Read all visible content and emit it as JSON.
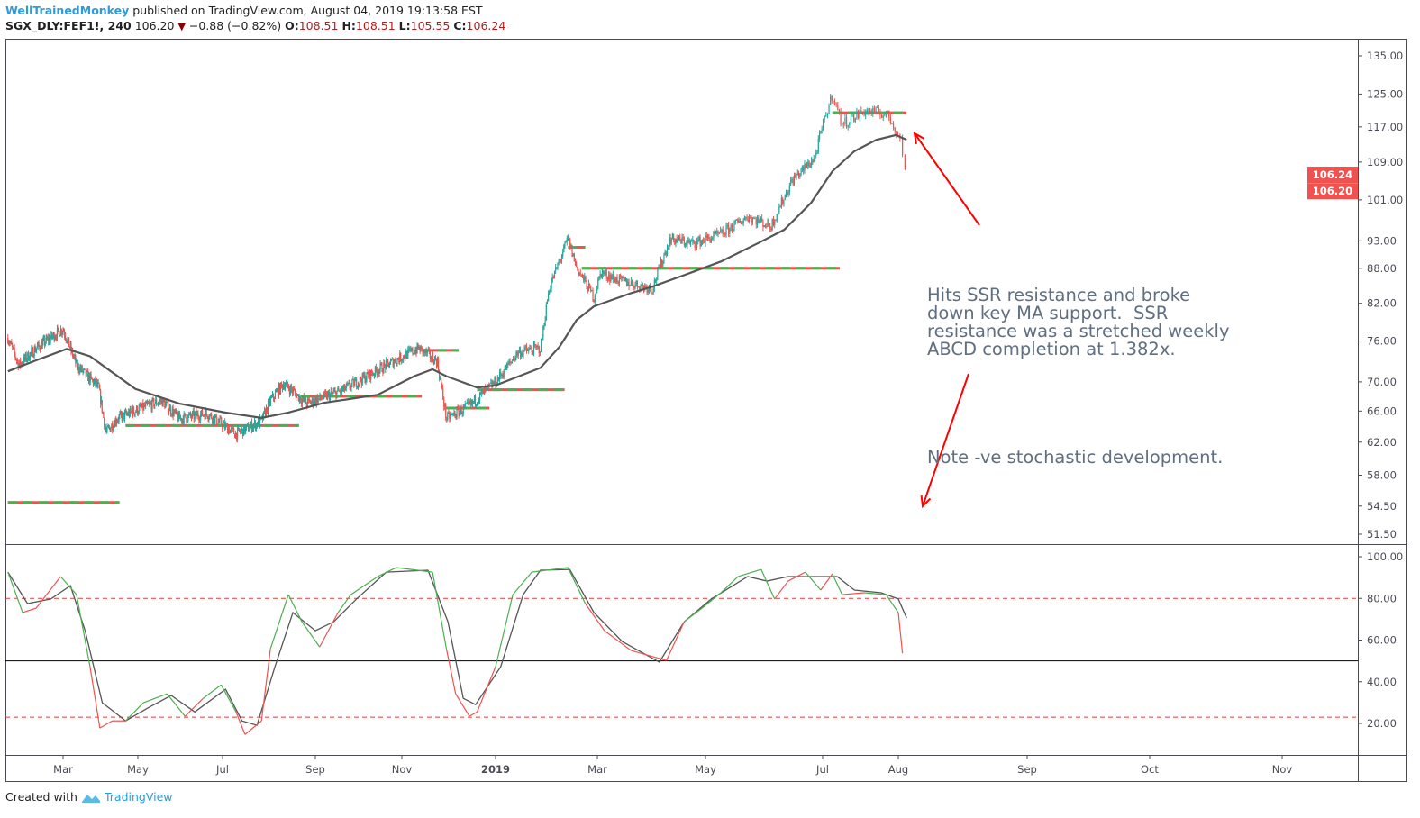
{
  "header": {
    "author": "WellTrainedMonkey",
    "published_text": "published on TradingView.com, August 04, 2019 19:13:58 EST",
    "symbol": "SGX_DLY:FEF1!, 240",
    "last": "106.20",
    "change": "−0.88 (−0.82%)",
    "open_label": "O:",
    "open": "108.51",
    "high_label": "H:",
    "high": "108.51",
    "low_label": "L:",
    "low": "105.55",
    "close_label": "C:",
    "close": "106.24"
  },
  "annotation": {
    "line1": "Hits SSR resistance and broke\ndown key MA support.  SSR\nresistance was a stretched weekly\nABCD completion at 1.382x.",
    "line2": "Note -ve stochastic development."
  },
  "footer": {
    "created_with": "Created with",
    "brand": "TradingView"
  },
  "colors": {
    "up": "#26a69a",
    "down": "#ef5350",
    "ma": "#555555",
    "stoch_up": "#4caf50",
    "stoch_down": "#ef5350",
    "arrow": "#ff0000",
    "level_green": "#4caf50",
    "level_red": "#ef5350",
    "price_tag": "#ef5350"
  },
  "chart_data": [
    {
      "type": "candlestick",
      "scale": "log",
      "ylim": [
        51.5,
        135
      ],
      "y_ticks": [
        "135.00",
        "125.00",
        "117.00",
        "109.00",
        "101.00",
        "93.00",
        "88.00",
        "82.00",
        "76.00",
        "70.00",
        "66.00",
        "62.00",
        "58.00",
        "54.50",
        "51.50"
      ],
      "x_ticks": [
        "Mar",
        "May",
        "Jul",
        "Sep",
        "Nov",
        "2019",
        "Mar",
        "May",
        "Jul",
        "Aug",
        "Sep",
        "Oct",
        "Nov"
      ],
      "price_tags": [
        "106.24",
        "106.20"
      ],
      "price_path": [
        [
          "2018-01-15",
          76.5
        ],
        [
          "2018-01-24",
          72.4
        ],
        [
          "2018-02-07",
          74.9
        ],
        [
          "2018-03-01",
          77.9
        ],
        [
          "2018-03-12",
          72.4
        ],
        [
          "2018-03-30",
          69.2
        ],
        [
          "2018-04-05",
          63.2
        ],
        [
          "2018-04-14",
          65.0
        ],
        [
          "2018-05-18",
          67.4
        ],
        [
          "2018-05-31",
          65.0
        ],
        [
          "2018-06-20",
          65.7
        ],
        [
          "2018-07-10",
          63.0
        ],
        [
          "2018-07-27",
          64.7
        ],
        [
          "2018-08-02",
          67.4
        ],
        [
          "2018-08-11",
          69.8
        ],
        [
          "2018-08-26",
          67.0
        ],
        [
          "2018-09-20",
          68.8
        ],
        [
          "2018-10-15",
          71.7
        ],
        [
          "2018-11-12",
          74.9
        ],
        [
          "2018-11-24",
          73.0
        ],
        [
          "2018-11-30",
          65.0
        ],
        [
          "2018-12-15",
          66.7
        ],
        [
          "2019-01-01",
          70.0
        ],
        [
          "2019-01-14",
          74.3
        ],
        [
          "2019-01-27",
          74.9
        ],
        [
          "2019-02-01",
          84.5
        ],
        [
          "2019-02-12",
          93.4
        ],
        [
          "2019-02-17",
          88.1
        ],
        [
          "2019-02-27",
          83.0
        ],
        [
          "2019-03-03",
          87.3
        ],
        [
          "2019-03-14",
          85.8
        ],
        [
          "2019-04-01",
          84.5
        ],
        [
          "2019-04-11",
          93.4
        ],
        [
          "2019-04-24",
          92.5
        ],
        [
          "2019-05-09",
          94.2
        ],
        [
          "2019-05-23",
          97.7
        ],
        [
          "2019-06-04",
          95.8
        ],
        [
          "2019-06-15",
          105.0
        ],
        [
          "2019-06-27",
          110.0
        ],
        [
          "2019-07-05",
          125.0
        ],
        [
          "2019-07-09",
          117.6
        ],
        [
          "2019-07-18",
          120.8
        ],
        [
          "2019-07-27",
          120.2
        ],
        [
          "2019-08-01",
          115.6
        ],
        [
          "2019-08-03",
          106.2
        ]
      ],
      "moving_average": [
        [
          "2018-01-15",
          71.5
        ],
        [
          "2018-02-07",
          73.1
        ],
        [
          "2018-03-04",
          74.8
        ],
        [
          "2018-03-23",
          73.7
        ],
        [
          "2018-04-29",
          69.0
        ],
        [
          "2018-05-31",
          67.0
        ],
        [
          "2018-07-03",
          65.8
        ],
        [
          "2018-07-27",
          65.1
        ],
        [
          "2018-08-14",
          65.8
        ],
        [
          "2018-09-07",
          67.1
        ],
        [
          "2018-10-15",
          68.2
        ],
        [
          "2018-11-09",
          70.8
        ],
        [
          "2018-11-21",
          71.8
        ],
        [
          "2018-11-30",
          70.8
        ],
        [
          "2018-12-20",
          69.2
        ],
        [
          "2019-01-01",
          69.5
        ],
        [
          "2019-01-27",
          72.0
        ],
        [
          "2019-02-07",
          75.1
        ],
        [
          "2019-02-17",
          79.3
        ],
        [
          "2019-02-27",
          81.5
        ],
        [
          "2019-03-20",
          83.7
        ],
        [
          "2019-04-01",
          84.8
        ],
        [
          "2019-04-19",
          86.8
        ],
        [
          "2019-05-09",
          89.2
        ],
        [
          "2019-05-28",
          92.5
        ],
        [
          "2019-06-11",
          95.1
        ],
        [
          "2019-06-25",
          100.4
        ],
        [
          "2019-07-05",
          107.0
        ],
        [
          "2019-07-14",
          111.4
        ],
        [
          "2019-07-23",
          114.0
        ],
        [
          "2019-07-31",
          115.1
        ],
        [
          "2019-08-03",
          114.0
        ]
      ],
      "levels": [
        {
          "price": 54.9,
          "from": "2018-01-15",
          "to": "2018-04-16"
        },
        {
          "price": 64.1,
          "from": "2018-04-21",
          "to": "2018-08-21"
        },
        {
          "price": 68.0,
          "from": "2018-08-22",
          "to": "2018-11-14"
        },
        {
          "price": 74.6,
          "from": "2018-11-14",
          "to": "2018-12-08"
        },
        {
          "price": 66.4,
          "from": "2018-11-30",
          "to": "2018-12-28"
        },
        {
          "price": 68.9,
          "from": "2018-12-20",
          "to": "2019-02-10"
        },
        {
          "price": 91.8,
          "from": "2019-02-12",
          "to": "2019-02-22"
        },
        {
          "price": 88.0,
          "from": "2019-02-20",
          "to": "2019-07-08"
        },
        {
          "price": 120.4,
          "from": "2019-07-05",
          "to": "2019-08-03"
        }
      ]
    },
    {
      "type": "line",
      "ylim": [
        10,
        105
      ],
      "y_ticks": [
        "100.00",
        "80.00",
        "60.00",
        "40.00",
        "20.00"
      ],
      "bands": [
        80,
        23
      ],
      "midline": 50,
      "series": [
        {
          "values": [
            [
              "2018-01-15",
              92.6
            ],
            [
              "2018-01-27",
              73.2
            ],
            [
              "2018-02-07",
              75.3
            ],
            [
              "2018-02-27",
              90.5
            ],
            [
              "2018-03-12",
              81.8
            ],
            [
              "2018-03-23",
              47.2
            ],
            [
              "2018-03-31",
              17.8
            ],
            [
              "2018-04-10",
              21.2
            ],
            [
              "2018-04-21",
              21.2
            ],
            [
              "2018-05-05",
              29.9
            ],
            [
              "2018-05-22",
              34.2
            ],
            [
              "2018-06-04",
              23.4
            ],
            [
              "2018-06-17",
              32.0
            ],
            [
              "2018-06-30",
              38.5
            ],
            [
              "2018-07-10",
              25.5
            ],
            [
              "2018-07-16",
              14.7
            ],
            [
              "2018-07-27",
              21.2
            ],
            [
              "2018-08-02",
              55.8
            ],
            [
              "2018-08-14",
              81.8
            ],
            [
              "2018-08-23",
              68.8
            ],
            [
              "2018-09-04",
              56.7
            ],
            [
              "2018-09-17",
              73.2
            ],
            [
              "2018-09-26",
              81.8
            ],
            [
              "2018-10-15",
              90.5
            ],
            [
              "2018-10-28",
              94.8
            ],
            [
              "2018-11-21",
              92.6
            ],
            [
              "2018-11-30",
              55.8
            ],
            [
              "2018-12-06",
              34.2
            ],
            [
              "2018-12-15",
              23.4
            ],
            [
              "2018-12-20",
              25.5
            ],
            [
              "2019-01-01",
              47.2
            ],
            [
              "2019-01-11",
              81.8
            ],
            [
              "2019-01-22",
              92.6
            ],
            [
              "2019-02-12",
              94.8
            ],
            [
              "2019-02-22",
              77.5
            ],
            [
              "2019-03-05",
              64.5
            ],
            [
              "2019-03-20",
              55.0
            ],
            [
              "2019-04-09",
              50.2
            ],
            [
              "2019-04-19",
              68.8
            ],
            [
              "2019-04-29",
              75.3
            ],
            [
              "2019-05-09",
              82.7
            ],
            [
              "2019-05-18",
              90.5
            ],
            [
              "2019-05-30",
              93.9
            ],
            [
              "2019-06-06",
              79.7
            ],
            [
              "2019-06-13",
              88.3
            ],
            [
              "2019-06-22",
              92.6
            ],
            [
              "2019-06-30",
              84.0
            ],
            [
              "2019-07-05",
              91.8
            ],
            [
              "2019-07-09",
              81.8
            ],
            [
              "2019-07-18",
              82.7
            ],
            [
              "2019-07-27",
              81.8
            ],
            [
              "2019-08-01",
              73.2
            ],
            [
              "2019-08-02",
              53.7
            ]
          ]
        },
        {
          "values": [
            [
              "2018-01-15",
              92.6
            ],
            [
              "2018-01-31",
              77.5
            ],
            [
              "2018-02-19",
              79.7
            ],
            [
              "2018-03-07",
              86.1
            ],
            [
              "2018-03-19",
              64.5
            ],
            [
              "2018-04-02",
              29.9
            ],
            [
              "2018-04-21",
              21.2
            ],
            [
              "2018-05-09",
              27.7
            ],
            [
              "2018-05-25",
              33.4
            ],
            [
              "2018-06-11",
              25.5
            ],
            [
              "2018-07-03",
              36.4
            ],
            [
              "2018-07-14",
              21.2
            ],
            [
              "2018-07-24",
              19.1
            ],
            [
              "2018-08-05",
              47.2
            ],
            [
              "2018-08-17",
              73.2
            ],
            [
              "2018-09-01",
              64.5
            ],
            [
              "2018-09-14",
              68.8
            ],
            [
              "2018-09-30",
              79.7
            ],
            [
              "2018-10-21",
              92.6
            ],
            [
              "2018-11-18",
              93.5
            ],
            [
              "2018-12-01",
              68.8
            ],
            [
              "2018-12-11",
              32.0
            ],
            [
              "2018-12-19",
              29.0
            ],
            [
              "2019-01-04",
              47.2
            ],
            [
              "2019-01-17",
              81.8
            ],
            [
              "2019-01-27",
              93.5
            ],
            [
              "2019-02-13",
              93.9
            ],
            [
              "2019-02-27",
              73.2
            ],
            [
              "2019-03-15",
              59.3
            ],
            [
              "2019-04-05",
              49.4
            ],
            [
              "2019-04-19",
              68.8
            ],
            [
              "2019-05-04",
              79.7
            ],
            [
              "2019-05-23",
              90.5
            ],
            [
              "2019-06-02",
              88.3
            ],
            [
              "2019-06-13",
              90.5
            ],
            [
              "2019-06-22",
              90.5
            ],
            [
              "2019-07-07",
              90.5
            ],
            [
              "2019-07-14",
              84.0
            ],
            [
              "2019-07-25",
              82.7
            ],
            [
              "2019-08-01",
              79.7
            ],
            [
              "2019-08-03",
              70.6
            ]
          ]
        }
      ]
    }
  ]
}
